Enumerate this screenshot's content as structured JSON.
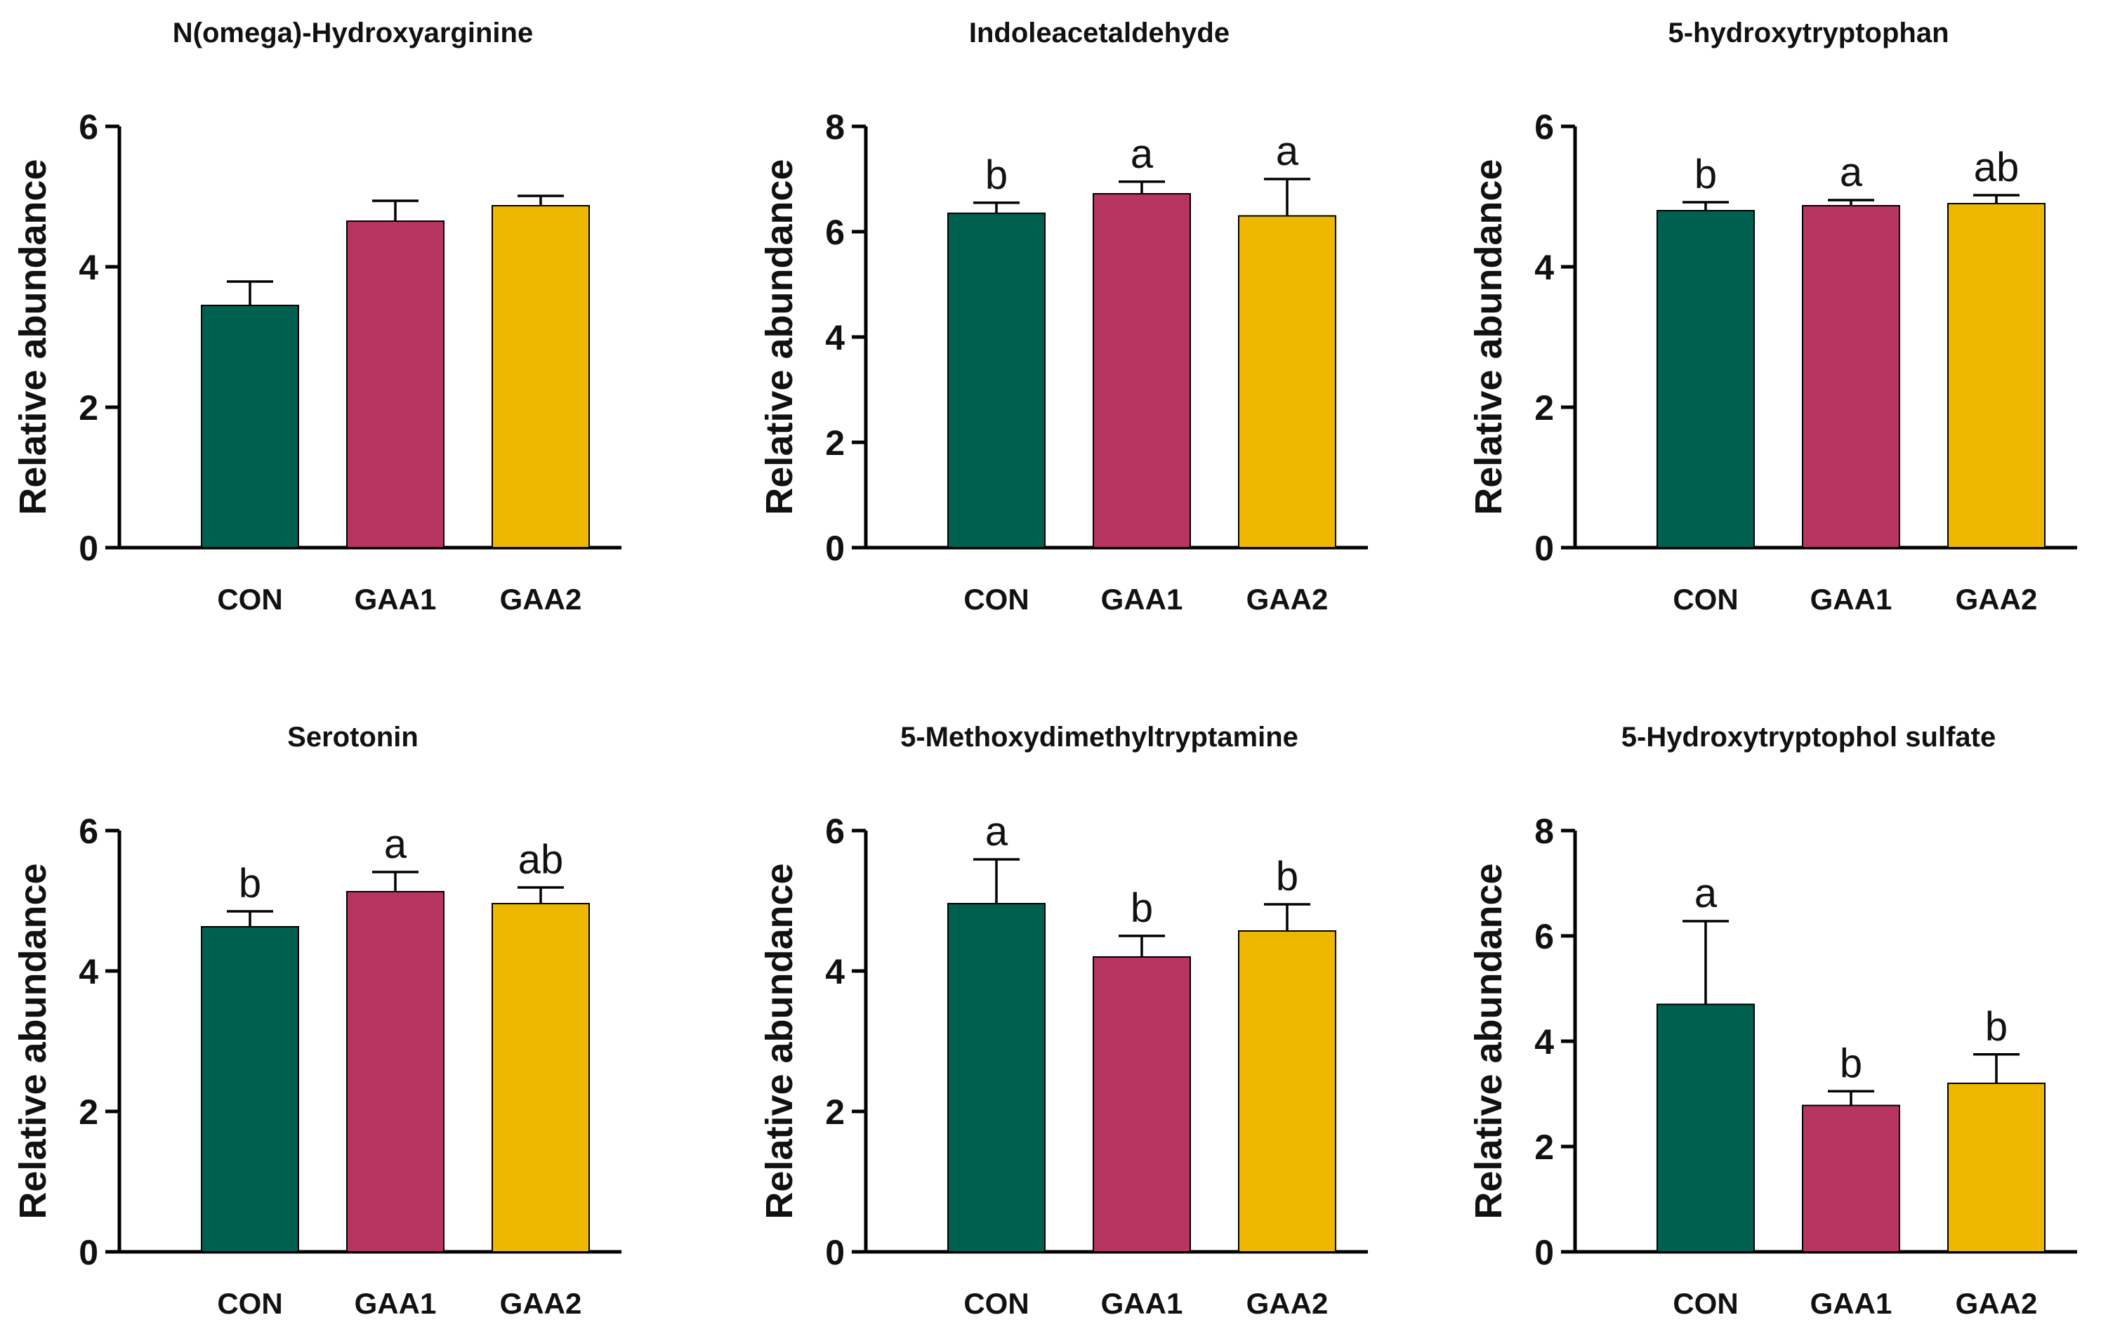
{
  "figure": {
    "colors": {
      "CON": "#00604f",
      "GAA1": "#b83562",
      "GAA2": "#eeb700",
      "axis": "#000000",
      "text": "#111111"
    }
  },
  "chart_data": [
    {
      "type": "bar",
      "title": "N(omega)-Hydroxyarginine",
      "xlabel": "",
      "ylabel": "Relative abundance",
      "categories": [
        "CON",
        "GAA1",
        "GAA2"
      ],
      "values": [
        3.45,
        4.65,
        4.87
      ],
      "errors": [
        0.34,
        0.29,
        0.14
      ],
      "significance": [
        "",
        "",
        ""
      ],
      "ylim": [
        0,
        6
      ],
      "yticks": [
        "0",
        "2",
        "4",
        "6"
      ]
    },
    {
      "type": "bar",
      "title": "Indoleacetaldehyde",
      "xlabel": "",
      "ylabel": "Relative abundance",
      "categories": [
        "CON",
        "GAA1",
        "GAA2"
      ],
      "values": [
        6.35,
        6.72,
        6.3
      ],
      "errors": [
        0.2,
        0.23,
        0.7
      ],
      "significance": [
        "b",
        "a",
        "a"
      ],
      "ylim": [
        0,
        8
      ],
      "yticks": [
        "0",
        "2",
        "4",
        "6",
        "8"
      ]
    },
    {
      "type": "bar",
      "title": "5-hydroxytryptophan",
      "xlabel": "",
      "ylabel": "Relative abundance",
      "categories": [
        "CON",
        "GAA1",
        "GAA2"
      ],
      "values": [
        4.8,
        4.87,
        4.9
      ],
      "errors": [
        0.12,
        0.08,
        0.12
      ],
      "significance": [
        "b",
        "a",
        "ab"
      ],
      "ylim": [
        0,
        6
      ],
      "yticks": [
        "0",
        "2",
        "4",
        "6"
      ]
    },
    {
      "type": "bar",
      "title": "Serotonin",
      "xlabel": "",
      "ylabel": "Relative abundance",
      "categories": [
        "CON",
        "GAA1",
        "GAA2"
      ],
      "values": [
        4.63,
        5.13,
        4.96
      ],
      "errors": [
        0.22,
        0.28,
        0.23
      ],
      "significance": [
        "b",
        "a",
        "ab"
      ],
      "ylim": [
        0,
        6
      ],
      "yticks": [
        "0",
        "2",
        "4",
        "6"
      ]
    },
    {
      "type": "bar",
      "title": "5-Methoxydimethyltryptamine",
      "xlabel": "",
      "ylabel": "Relative abundance",
      "categories": [
        "CON",
        "GAA1",
        "GAA2"
      ],
      "values": [
        4.96,
        4.2,
        4.57
      ],
      "errors": [
        0.63,
        0.3,
        0.38
      ],
      "significance": [
        "a",
        "b",
        "b"
      ],
      "ylim": [
        0,
        6
      ],
      "yticks": [
        "0",
        "2",
        "4",
        "6"
      ]
    },
    {
      "type": "bar",
      "title": "5-Hydroxytryptophol sulfate",
      "xlabel": "",
      "ylabel": "Relative abundance",
      "categories": [
        "CON",
        "GAA1",
        "GAA2"
      ],
      "values": [
        4.7,
        2.78,
        3.2
      ],
      "errors": [
        1.58,
        0.27,
        0.55
      ],
      "significance": [
        "a",
        "b",
        "b"
      ],
      "ylim": [
        0,
        8
      ],
      "yticks": [
        "0",
        "2",
        "4",
        "6",
        "8"
      ]
    }
  ]
}
